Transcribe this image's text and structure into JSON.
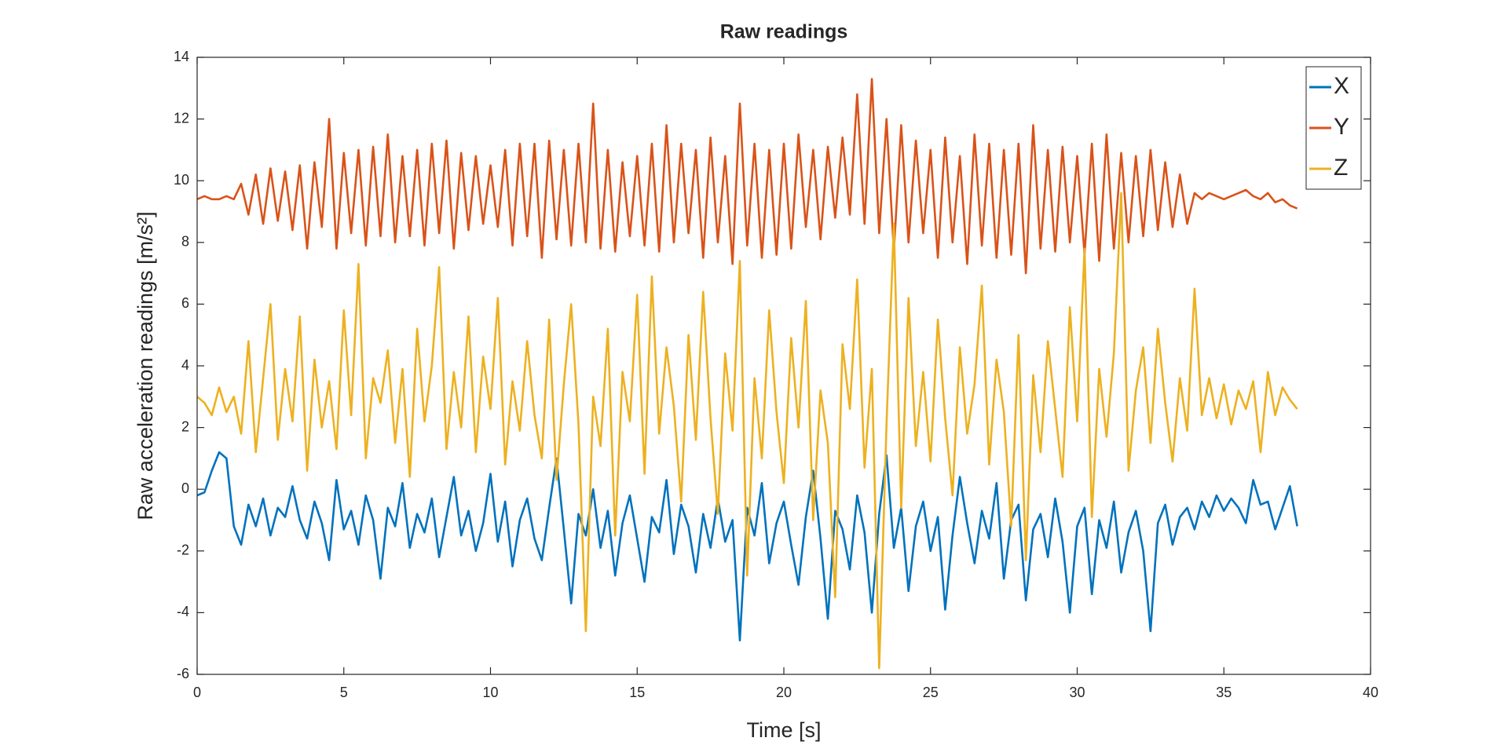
{
  "chart_data": {
    "type": "line",
    "title": "Raw readings",
    "xlabel": "Time [s]",
    "ylabel": "Raw acceleration readings [m/s²]",
    "x": [
      0,
      0.25,
      0.5,
      0.75,
      1,
      1.25,
      1.5,
      1.75,
      2,
      2.25,
      2.5,
      2.75,
      3,
      3.25,
      3.5,
      3.75,
      4,
      4.25,
      4.5,
      4.75,
      5,
      5.25,
      5.5,
      5.75,
      6,
      6.25,
      6.5,
      6.75,
      7,
      7.25,
      7.5,
      7.75,
      8,
      8.25,
      8.5,
      8.75,
      9,
      9.25,
      9.5,
      9.75,
      10,
      10.25,
      10.5,
      10.75,
      11,
      11.25,
      11.5,
      11.75,
      12,
      12.25,
      12.5,
      12.75,
      13,
      13.25,
      13.5,
      13.75,
      14,
      14.25,
      14.5,
      14.75,
      15,
      15.25,
      15.5,
      15.75,
      16,
      16.25,
      16.5,
      16.75,
      17,
      17.25,
      17.5,
      17.75,
      18,
      18.25,
      18.5,
      18.75,
      19,
      19.25,
      19.5,
      19.75,
      20,
      20.25,
      20.5,
      20.75,
      21,
      21.25,
      21.5,
      21.75,
      22,
      22.25,
      22.5,
      22.75,
      23,
      23.25,
      23.5,
      23.75,
      24,
      24.25,
      24.5,
      24.75,
      25,
      25.25,
      25.5,
      25.75,
      26,
      26.25,
      26.5,
      26.75,
      27,
      27.25,
      27.5,
      27.75,
      28,
      28.25,
      28.5,
      28.75,
      29,
      29.25,
      29.5,
      29.75,
      30,
      30.25,
      30.5,
      30.75,
      31,
      31.25,
      31.5,
      31.75,
      32,
      32.25,
      32.5,
      32.75,
      33,
      33.25,
      33.5,
      33.75,
      34,
      34.25,
      34.5,
      34.75,
      35,
      35.25,
      35.5,
      35.75,
      36,
      36.25,
      36.5,
      36.75,
      37,
      37.25,
      37.5
    ],
    "series": [
      {
        "name": "X",
        "color": "#0072BD",
        "values": [
          -0.2,
          -0.1,
          0.6,
          1.2,
          1.0,
          -1.2,
          -1.8,
          -0.5,
          -1.2,
          -0.3,
          -1.5,
          -0.6,
          -0.9,
          0.1,
          -1.0,
          -1.6,
          -0.4,
          -1.1,
          -2.3,
          0.3,
          -1.3,
          -0.7,
          -1.8,
          -0.2,
          -1.0,
          -2.9,
          -0.6,
          -1.2,
          0.2,
          -1.9,
          -0.8,
          -1.4,
          -0.3,
          -2.2,
          -0.9,
          0.4,
          -1.5,
          -0.7,
          -2.0,
          -1.1,
          0.5,
          -1.7,
          -0.4,
          -2.5,
          -1.0,
          -0.3,
          -1.6,
          -2.3,
          -0.6,
          1.0,
          -1.3,
          -3.7,
          -0.8,
          -1.5,
          0.0,
          -1.9,
          -0.7,
          -2.8,
          -1.1,
          -0.2,
          -1.6,
          -3.0,
          -0.9,
          -1.4,
          0.3,
          -2.1,
          -0.5,
          -1.2,
          -2.7,
          -0.8,
          -1.9,
          -0.3,
          -1.7,
          -1.0,
          -4.9,
          -0.6,
          -1.5,
          0.2,
          -2.4,
          -1.1,
          -0.4,
          -1.8,
          -3.1,
          -0.9,
          0.6,
          -1.6,
          -4.2,
          -0.7,
          -1.3,
          -2.6,
          -0.2,
          -1.4,
          -4.0,
          -0.8,
          1.1,
          -1.9,
          -0.6,
          -3.3,
          -1.2,
          -0.4,
          -2.0,
          -0.9,
          -3.9,
          -1.5,
          0.4,
          -1.1,
          -2.4,
          -0.7,
          -1.6,
          0.2,
          -2.9,
          -1.0,
          -0.5,
          -3.6,
          -1.3,
          -0.8,
          -2.2,
          -0.3,
          -1.7,
          -4.0,
          -1.2,
          -0.6,
          -3.4,
          -1.0,
          -1.9,
          -0.4,
          -2.7,
          -1.4,
          -0.7,
          -2.0,
          -4.6,
          -1.1,
          -0.5,
          -1.8,
          -0.9,
          -0.6,
          -1.3,
          -0.4,
          -0.9,
          -0.2,
          -0.7,
          -0.3,
          -0.6,
          -1.1,
          0.3,
          -0.5,
          -0.4,
          -1.3,
          -0.6,
          0.1,
          -1.2
        ]
      },
      {
        "name": "Y",
        "color": "#D95319",
        "values": [
          9.4,
          9.5,
          9.4,
          9.4,
          9.5,
          9.4,
          9.9,
          8.9,
          10.2,
          8.6,
          10.4,
          8.7,
          10.3,
          8.4,
          10.5,
          7.8,
          10.6,
          8.5,
          12.0,
          7.8,
          10.9,
          8.3,
          11.0,
          7.9,
          11.1,
          8.2,
          11.5,
          8.0,
          10.8,
          8.2,
          11.0,
          7.9,
          11.2,
          8.3,
          11.3,
          7.8,
          10.9,
          8.4,
          10.8,
          8.6,
          10.5,
          8.5,
          11.0,
          7.9,
          11.2,
          8.2,
          11.2,
          7.5,
          11.3,
          8.1,
          11.0,
          7.9,
          11.2,
          8.0,
          12.5,
          7.8,
          11.0,
          7.7,
          10.6,
          8.2,
          10.8,
          7.9,
          11.2,
          7.7,
          11.8,
          8.0,
          11.2,
          8.3,
          11.0,
          7.5,
          11.4,
          8.0,
          10.8,
          7.3,
          12.5,
          7.9,
          11.2,
          7.5,
          11.0,
          7.6,
          11.2,
          7.8,
          11.5,
          8.5,
          11.0,
          8.1,
          11.1,
          8.8,
          11.4,
          8.9,
          12.8,
          8.6,
          13.3,
          8.3,
          12.0,
          7.7,
          11.8,
          8.0,
          11.3,
          8.3,
          11.0,
          7.5,
          11.4,
          8.0,
          10.8,
          7.3,
          11.5,
          7.9,
          11.2,
          7.5,
          11.0,
          7.6,
          11.2,
          7.0,
          11.8,
          7.8,
          11.0,
          7.7,
          11.1,
          8.0,
          10.8,
          7.6,
          11.2,
          7.4,
          11.5,
          7.8,
          10.9,
          8.0,
          10.8,
          8.2,
          11.0,
          8.4,
          10.6,
          8.5,
          10.2,
          8.6,
          9.6,
          9.4,
          9.6,
          9.5,
          9.4,
          9.5,
          9.6,
          9.7,
          9.5,
          9.4,
          9.6,
          9.3,
          9.4,
          9.2,
          9.1
        ]
      },
      {
        "name": "Z",
        "color": "#EDB120",
        "values": [
          3.0,
          2.8,
          2.4,
          3.3,
          2.5,
          3.0,
          1.8,
          4.8,
          1.2,
          3.6,
          6.0,
          1.6,
          3.9,
          2.2,
          5.6,
          0.6,
          4.2,
          2.0,
          3.5,
          1.3,
          5.8,
          2.4,
          7.3,
          1.0,
          3.6,
          2.8,
          4.5,
          1.5,
          3.9,
          0.4,
          5.2,
          2.2,
          4.0,
          7.2,
          1.3,
          3.8,
          2.0,
          5.6,
          1.2,
          4.3,
          2.6,
          6.2,
          0.8,
          3.5,
          1.9,
          4.8,
          2.4,
          1.0,
          5.5,
          0.3,
          3.4,
          6.0,
          2.1,
          -4.6,
          3.0,
          1.4,
          5.2,
          -1.5,
          3.8,
          2.2,
          6.3,
          0.5,
          6.9,
          1.8,
          4.6,
          2.7,
          -0.4,
          5.0,
          1.6,
          6.4,
          2.3,
          -0.8,
          4.4,
          1.9,
          7.4,
          -2.8,
          3.6,
          1.0,
          5.8,
          2.5,
          0.2,
          4.9,
          2.0,
          6.1,
          -1.0,
          3.2,
          1.5,
          -3.5,
          4.7,
          2.6,
          6.8,
          0.7,
          3.9,
          -5.8,
          2.1,
          8.6,
          -0.6,
          6.2,
          1.4,
          3.8,
          0.9,
          5.5,
          2.3,
          -0.2,
          4.6,
          1.8,
          3.4,
          6.6,
          0.8,
          4.2,
          2.5,
          -1.2,
          5.0,
          -2.3,
          3.7,
          1.2,
          4.8,
          2.6,
          0.4,
          5.9,
          2.2,
          7.8,
          -0.9,
          3.9,
          1.7,
          4.4,
          9.6,
          0.6,
          3.2,
          4.6,
          1.5,
          5.2,
          2.8,
          0.9,
          3.6,
          1.9,
          6.5,
          2.4,
          3.6,
          2.3,
          3.4,
          2.1,
          3.2,
          2.6,
          3.5,
          1.2,
          3.8,
          2.4,
          3.3,
          2.9,
          2.6
        ]
      }
    ],
    "xlim": [
      0,
      40
    ],
    "xticks": [
      0,
      5,
      10,
      15,
      20,
      25,
      30,
      35,
      40
    ],
    "ylim": [
      -6,
      14
    ],
    "yticks": [
      -6,
      -4,
      -2,
      0,
      2,
      4,
      6,
      8,
      10,
      12,
      14
    ],
    "grid": false,
    "legend": "upper right"
  }
}
